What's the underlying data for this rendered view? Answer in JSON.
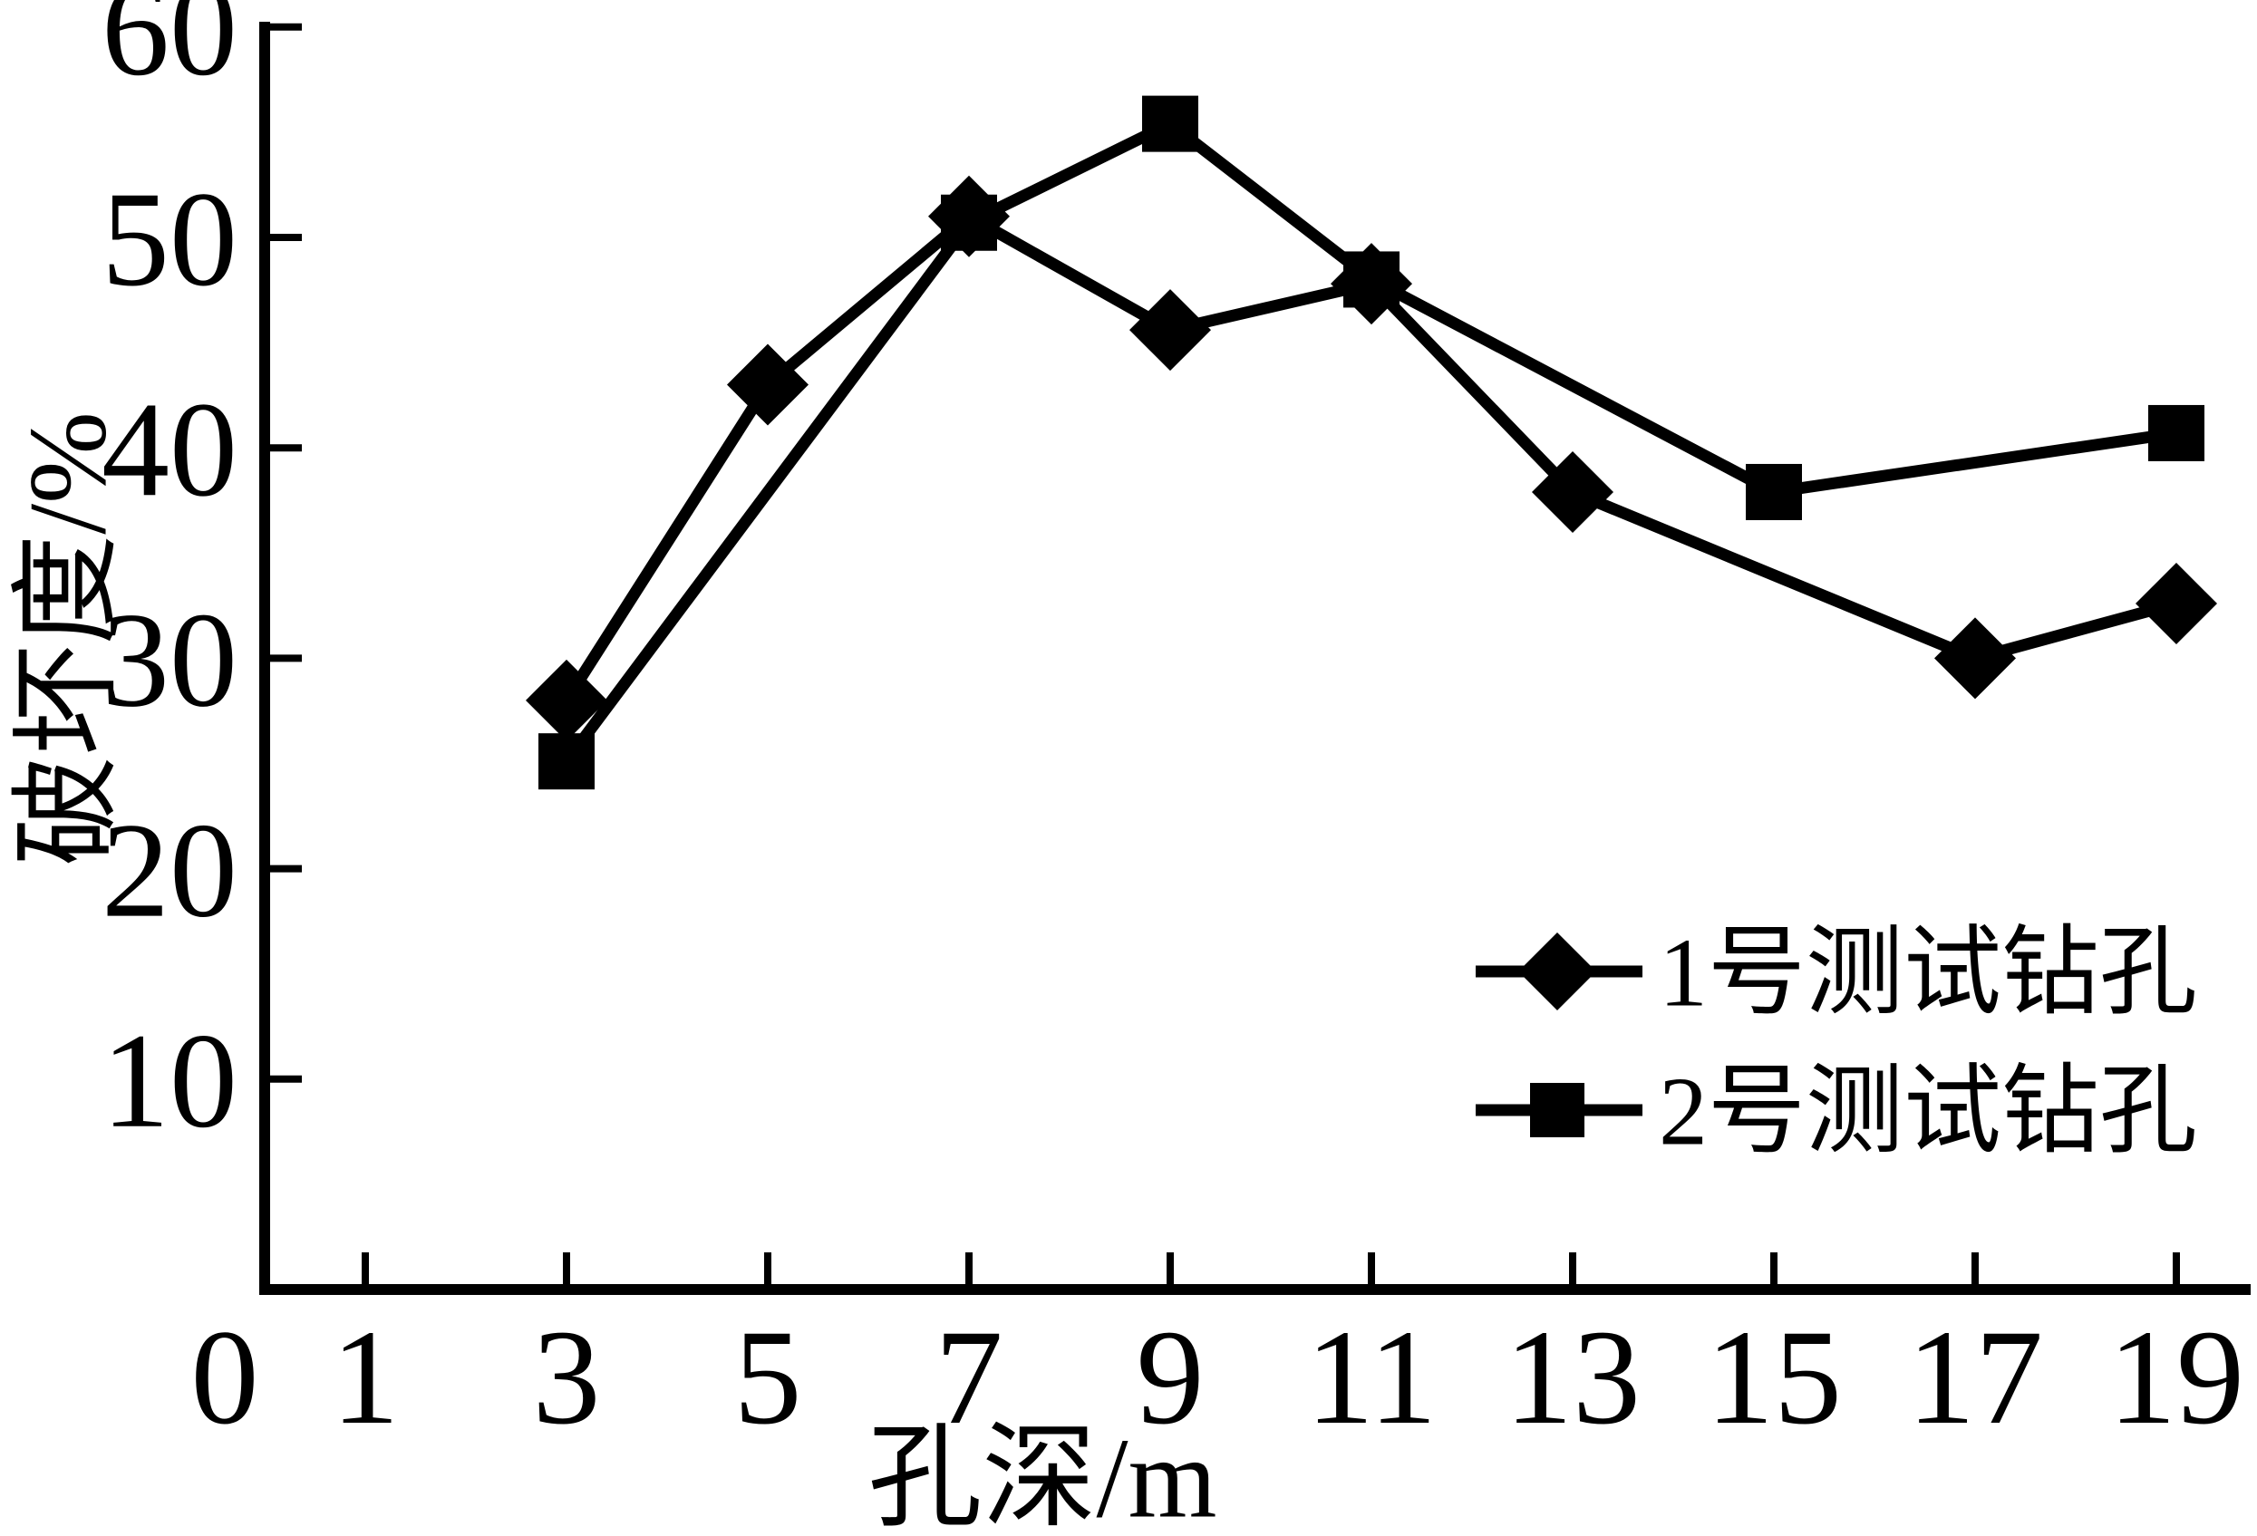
{
  "chart_data": {
    "type": "line",
    "title": "",
    "xlabel": "孔深/m",
    "ylabel": "破坏度/%",
    "x_axis": {
      "label": "孔深/m",
      "origin_label": "0",
      "tick_values": [
        1,
        3,
        5,
        7,
        9,
        11,
        13,
        15,
        17,
        19
      ],
      "range": [
        0,
        19.8
      ]
    },
    "y_axis": {
      "label": "破坏度/%",
      "tick_values": [
        10,
        20,
        30,
        40,
        50,
        60
      ],
      "range": [
        0,
        60
      ]
    },
    "grid": "off",
    "legend_position": "lower-right",
    "series": [
      {
        "name": "1号测试钻孔",
        "marker": "diamond",
        "points": [
          [
            3,
            28.0
          ],
          [
            5,
            43.0
          ],
          [
            7,
            51.0
          ],
          [
            9,
            45.6
          ],
          [
            11,
            47.8
          ],
          [
            13,
            37.9
          ],
          [
            17,
            30.0
          ],
          [
            19,
            32.6
          ]
        ]
      },
      {
        "name": "2号测试钻孔",
        "marker": "square",
        "points": [
          [
            3,
            25.1
          ],
          [
            7,
            50.7
          ],
          [
            9,
            55.4
          ],
          [
            11,
            48.0
          ],
          [
            15,
            37.9
          ],
          [
            19,
            40.7
          ]
        ]
      }
    ],
    "colors": {
      "line": "#000000",
      "marker": "#000000",
      "text": "#000000",
      "background": "#ffffff"
    }
  }
}
